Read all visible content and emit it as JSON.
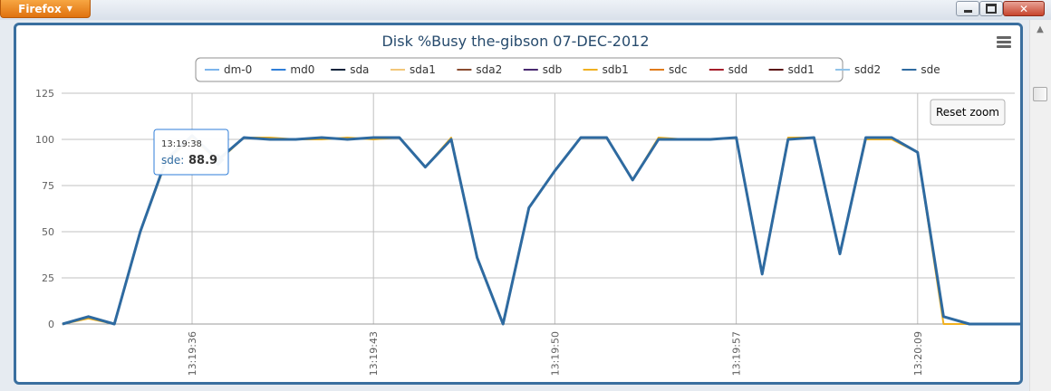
{
  "window": {
    "app_button_label": "Firefox",
    "close_glyph": "✕"
  },
  "colors": {
    "frame_border": "#3a6f9f",
    "title_text": "#274b6d",
    "grid": "#c0c0c0",
    "axis_text": "#606060",
    "tooltip_border": "#2f7ed8"
  },
  "chart_data": {
    "type": "line",
    "title": "Disk %Busy the-gibson 07-DEC-2012",
    "xlabel": "",
    "ylabel": "",
    "ylim": [
      0,
      125
    ],
    "yticks": [
      0,
      25,
      50,
      75,
      100,
      125
    ],
    "grid": true,
    "legend_position": "top-center",
    "x_tick_labels": [
      "13:19:36",
      "13:19:43",
      "13:19:50",
      "13:19:57",
      "13:20:09"
    ],
    "x_tick_indices": [
      5,
      12,
      19,
      26,
      33
    ],
    "x_count": 38,
    "series": [
      {
        "name": "dm-0",
        "color": "#7cb5ec",
        "values": []
      },
      {
        "name": "md0",
        "color": "#2f7ed8",
        "values": []
      },
      {
        "name": "sda",
        "color": "#0d233a",
        "values": []
      },
      {
        "name": "sda1",
        "color": "#f2c77a",
        "values": []
      },
      {
        "name": "sda2",
        "color": "#8a4b2f",
        "values": []
      },
      {
        "name": "sdb",
        "color": "#492970",
        "values": []
      },
      {
        "name": "sdb1",
        "color": "#f0b020",
        "values": [
          0,
          3,
          0,
          50,
          88,
          101,
          88,
          101,
          101,
          100,
          100,
          101,
          100,
          101,
          85,
          101,
          36,
          0,
          63,
          83,
          101,
          101,
          78,
          101,
          100,
          100,
          101,
          27,
          101,
          101,
          38,
          100,
          100,
          93,
          0,
          0,
          0,
          0
        ]
      },
      {
        "name": "sdc",
        "color": "#e07b1a",
        "values": []
      },
      {
        "name": "sdd",
        "color": "#a51d2a",
        "values": []
      },
      {
        "name": "sdd1",
        "color": "#5a0f0f",
        "values": []
      },
      {
        "name": "sdd2",
        "color": "#91c3e8",
        "values": []
      },
      {
        "name": "sde",
        "color": "#2e6aa0",
        "values": [
          0,
          4,
          0,
          50,
          89,
          102,
          88.9,
          101,
          100,
          100,
          101,
          100,
          101,
          101,
          85,
          100,
          36,
          0,
          63,
          83,
          101,
          101,
          78,
          100,
          100,
          100,
          101,
          27,
          100,
          101,
          38,
          101,
          101,
          93,
          4,
          0,
          0,
          0
        ]
      }
    ],
    "tooltip": {
      "time": "13:19:38",
      "series": "sde",
      "value": "88.9",
      "index": 6
    },
    "reset_zoom_label": "Reset zoom"
  }
}
